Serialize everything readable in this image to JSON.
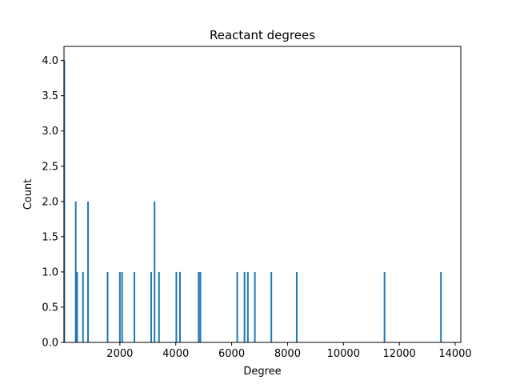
{
  "chart_data": {
    "type": "bar",
    "title": "Reactant degrees",
    "xlabel": "Degree",
    "ylabel": "Count",
    "xlim": [
      0,
      14200
    ],
    "ylim": [
      0.0,
      4.2
    ],
    "xticks": [
      "2000",
      "4000",
      "6000",
      "8000",
      "10000",
      "12000",
      "14000"
    ],
    "xtick_values": [
      2000,
      4000,
      6000,
      8000,
      10000,
      12000,
      14000
    ],
    "yticks": [
      "0.0",
      "0.5",
      "1.0",
      "1.5",
      "2.0",
      "2.5",
      "3.0",
      "3.5",
      "4.0"
    ],
    "ytick_values": [
      0.0,
      0.5,
      1.0,
      1.5,
      2.0,
      2.5,
      3.0,
      3.5,
      4.0
    ],
    "bar_color": "#1f77b4",
    "grid": false,
    "bins": [
      {
        "degree": 10,
        "count": 4
      },
      {
        "degree": 420,
        "count": 2
      },
      {
        "degree": 470,
        "count": 1
      },
      {
        "degree": 680,
        "count": 1
      },
      {
        "degree": 860,
        "count": 2
      },
      {
        "degree": 1560,
        "count": 1
      },
      {
        "degree": 2000,
        "count": 1
      },
      {
        "degree": 2080,
        "count": 1
      },
      {
        "degree": 2520,
        "count": 1
      },
      {
        "degree": 3120,
        "count": 1
      },
      {
        "degree": 3240,
        "count": 2
      },
      {
        "degree": 3400,
        "count": 1
      },
      {
        "degree": 4020,
        "count": 1
      },
      {
        "degree": 4150,
        "count": 1
      },
      {
        "degree": 4820,
        "count": 1
      },
      {
        "degree": 4880,
        "count": 1
      },
      {
        "degree": 6200,
        "count": 1
      },
      {
        "degree": 6460,
        "count": 1
      },
      {
        "degree": 6580,
        "count": 1
      },
      {
        "degree": 6830,
        "count": 1
      },
      {
        "degree": 7420,
        "count": 1
      },
      {
        "degree": 8330,
        "count": 1
      },
      {
        "degree": 11470,
        "count": 1
      },
      {
        "degree": 13490,
        "count": 1
      }
    ]
  }
}
